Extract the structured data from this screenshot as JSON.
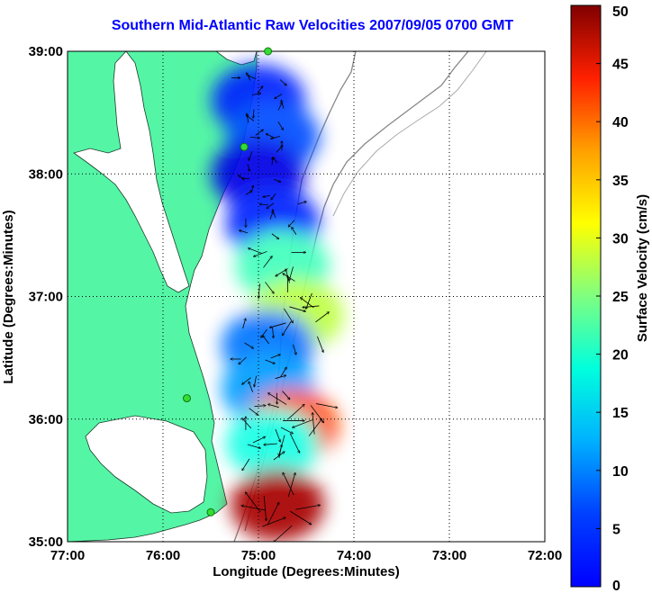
{
  "title": "Southern Mid-Atlantic Raw Velocities 2007/09/05 0700 GMT",
  "axes": {
    "xlabel": "Longitude (Degrees:Minutes)",
    "ylabel": "Latitude (Degrees:Minutes)",
    "xticks": [
      {
        "value": -77,
        "label": "77:00"
      },
      {
        "value": -76,
        "label": "76:00"
      },
      {
        "value": -75,
        "label": "75:00"
      },
      {
        "value": -74,
        "label": "74:00"
      },
      {
        "value": -73,
        "label": "73:00"
      },
      {
        "value": -72,
        "label": "72:00"
      }
    ],
    "yticks": [
      {
        "value": 35,
        "label": "35:00"
      },
      {
        "value": 36,
        "label": "36:00"
      },
      {
        "value": 37,
        "label": "37:00"
      },
      {
        "value": 38,
        "label": "38:00"
      },
      {
        "value": 39,
        "label": "39:00"
      }
    ],
    "xlim": [
      -77,
      -72
    ],
    "ylim": [
      35,
      39
    ],
    "grid": true
  },
  "colorbar": {
    "label": "Surface Velocity (cm/s)",
    "min": 0,
    "max": 50,
    "ticks": [
      0,
      5,
      10,
      15,
      20,
      25,
      30,
      35,
      40,
      45,
      50
    ],
    "colormap": "jet"
  },
  "colors": {
    "land": "#55f5a6",
    "water": "#ffffff",
    "title": "#0000ff",
    "isobath": "#888888",
    "station": "#33dd33"
  },
  "stations": [
    {
      "lon": -74.9,
      "lat": 39.0
    },
    {
      "lon": -75.15,
      "lat": 38.22
    },
    {
      "lon": -75.75,
      "lat": 36.17
    },
    {
      "lon": -75.5,
      "lat": 35.24
    }
  ],
  "velocity_zones": [
    {
      "lon": -75.0,
      "lat": 38.6,
      "speed": 8
    },
    {
      "lon": -74.85,
      "lat": 38.3,
      "speed": 10
    },
    {
      "lon": -75.0,
      "lat": 38.0,
      "speed": 5
    },
    {
      "lon": -74.85,
      "lat": 37.6,
      "speed": 8
    },
    {
      "lon": -74.75,
      "lat": 37.25,
      "speed": 22
    },
    {
      "lon": -74.6,
      "lat": 36.85,
      "speed": 28
    },
    {
      "lon": -74.9,
      "lat": 36.6,
      "speed": 12
    },
    {
      "lon": -74.9,
      "lat": 36.25,
      "speed": 14
    },
    {
      "lon": -74.65,
      "lat": 35.95,
      "speed": 40
    },
    {
      "lon": -74.85,
      "lat": 35.8,
      "speed": 20
    },
    {
      "lon": -74.8,
      "lat": 35.3,
      "speed": 48
    }
  ]
}
